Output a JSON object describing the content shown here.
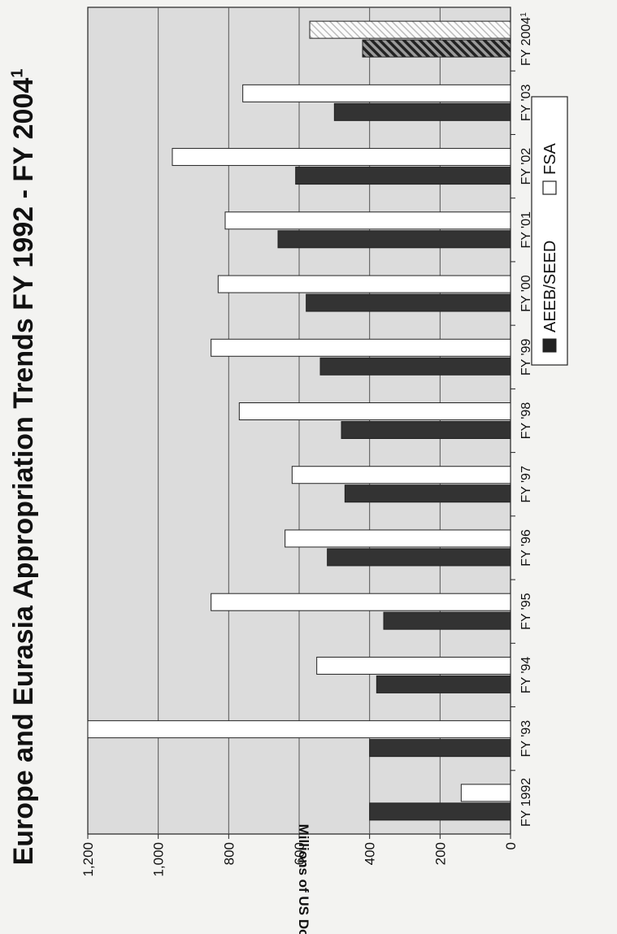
{
  "chart_data": {
    "type": "bar",
    "orientation": "vertical",
    "title": "Europe and Eurasia Appropriation Trends FY 1992 - FY 2004",
    "title_superscript": "1",
    "ylabel": "Millions of US Dollars",
    "ylim": [
      0,
      1200
    ],
    "yticks": [
      0,
      200,
      400,
      600,
      800,
      1000,
      1200
    ],
    "ytick_labels": [
      "0",
      "200",
      "400",
      "600",
      "800",
      "1,000",
      "1,200"
    ],
    "categories": [
      "FY 1992",
      "FY '93",
      "FY '94",
      "FY '95",
      "FY '96",
      "FY '97",
      "FY '98",
      "FY '99",
      "FY '00",
      "FY '01",
      "FY '02",
      "FY '03",
      "FY 2004"
    ],
    "category_superscripts": [
      "",
      "",
      "",
      "",
      "",
      "",
      "",
      "",
      "",
      "",
      "",
      "",
      "1"
    ],
    "series": [
      {
        "name": "AEEB/SEED",
        "color": "#333333",
        "values": [
          400,
          400,
          380,
          360,
          520,
          470,
          480,
          540,
          580,
          660,
          610,
          500,
          420
        ]
      },
      {
        "name": "FSA",
        "color": "#ffffff",
        "values": [
          140,
          1200,
          550,
          850,
          640,
          620,
          770,
          850,
          830,
          810,
          960,
          760,
          570
        ]
      }
    ],
    "highlighted_category": "FY 2004",
    "grid": true,
    "legend_position": "bottom"
  }
}
